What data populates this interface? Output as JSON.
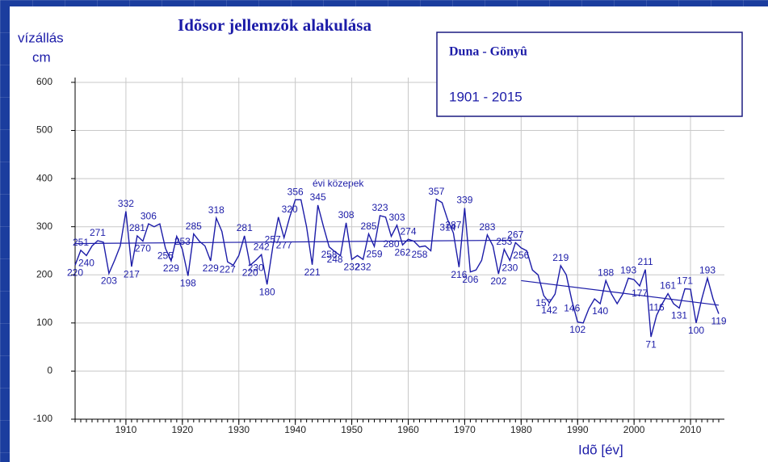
{
  "chart_data": {
    "type": "line",
    "title": "Idõsor jellemzõk alakulása",
    "ylabel": [
      "vízállás",
      "cm"
    ],
    "xlabel": "Idõ [év]",
    "legend_box": [
      "Duna - Gönyû",
      "1901 - 2015"
    ],
    "annotation": "évi közepek",
    "color": "#1c1ca8",
    "grid": true,
    "xlim": [
      1901,
      2016
    ],
    "xticks": [
      1910,
      1920,
      1930,
      1940,
      1950,
      1960,
      1970,
      1980,
      1990,
      2000,
      2010
    ],
    "ylim": [
      -100,
      610
    ],
    "yticks": [
      -100,
      0,
      100,
      200,
      300,
      400,
      500,
      600
    ],
    "x": [
      1901,
      1902,
      1903,
      1904,
      1905,
      1906,
      1907,
      1908,
      1909,
      1910,
      1911,
      1912,
      1913,
      1914,
      1915,
      1916,
      1917,
      1918,
      1919,
      1920,
      1921,
      1922,
      1923,
      1924,
      1925,
      1926,
      1927,
      1928,
      1929,
      1930,
      1931,
      1932,
      1933,
      1934,
      1935,
      1936,
      1937,
      1938,
      1939,
      1940,
      1941,
      1942,
      1943,
      1944,
      1945,
      1946,
      1947,
      1948,
      1949,
      1950,
      1951,
      1952,
      1953,
      1954,
      1955,
      1956,
      1957,
      1958,
      1959,
      1960,
      1961,
      1962,
      1963,
      1964,
      1965,
      1966,
      1967,
      1968,
      1969,
      1970,
      1971,
      1972,
      1973,
      1974,
      1975,
      1976,
      1977,
      1978,
      1979,
      1980,
      1981,
      1982,
      1983,
      1984,
      1985,
      1986,
      1987,
      1988,
      1989,
      1990,
      1991,
      1992,
      1993,
      1994,
      1995,
      1996,
      1997,
      1998,
      1999,
      2000,
      2001,
      2002,
      2003,
      2004,
      2005,
      2006,
      2007,
      2008,
      2009,
      2010,
      2011,
      2012,
      2013,
      2014,
      2015
    ],
    "values": [
      220,
      251,
      240,
      260,
      271,
      268,
      203,
      230,
      260,
      332,
      217,
      281,
      270,
      306,
      300,
      306,
      255,
      229,
      280,
      253,
      198,
      285,
      270,
      260,
      229,
      318,
      290,
      227,
      220,
      240,
      281,
      220,
      230,
      242,
      180,
      257,
      320,
      277,
      320,
      356,
      356,
      300,
      221,
      345,
      300,
      258,
      248,
      240,
      308,
      232,
      240,
      232,
      285,
      259,
      323,
      320,
      280,
      303,
      262,
      274,
      270,
      258,
      260,
      250,
      357,
      350,
      314,
      287,
      216,
      339,
      206,
      210,
      230,
      283,
      260,
      202,
      253,
      230,
      267,
      256,
      250,
      210,
      200,
      157,
      142,
      160,
      219,
      200,
      146,
      102,
      100,
      130,
      150,
      140,
      188,
      160,
      140,
      160,
      193,
      190,
      177,
      211,
      71,
      116,
      140,
      161,
      140,
      131,
      171,
      170,
      100,
      150,
      193,
      150,
      119
    ],
    "value_labels": [
      "220",
      "251",
      "240",
      null,
      "271",
      null,
      "203",
      null,
      null,
      "332",
      "217",
      "281",
      "270",
      "306",
      null,
      null,
      "255",
      "229",
      null,
      "253",
      "198",
      "285",
      null,
      null,
      "229",
      "318",
      null,
      "227",
      null,
      null,
      "281",
      "220",
      "230",
      "242",
      "180",
      "257",
      null,
      "277",
      "320",
      "356",
      null,
      null,
      "221",
      "345",
      null,
      "258",
      "248",
      null,
      "308",
      "232",
      null,
      "232",
      "285",
      "259",
      "323",
      null,
      "280",
      "303",
      "262",
      "274",
      null,
      "258",
      null,
      null,
      "357",
      null,
      "314",
      "287",
      "216",
      "339",
      "206",
      null,
      null,
      "283",
      null,
      "202",
      "253",
      "230",
      "267",
      "256",
      null,
      null,
      null,
      "157",
      "142",
      null,
      "219",
      null,
      "146",
      "102",
      null,
      null,
      null,
      "140",
      "188",
      null,
      null,
      null,
      "193",
      null,
      "177",
      "211",
      "71",
      "116",
      null,
      "161",
      null,
      "131",
      "171",
      null,
      "100",
      null,
      "193",
      null,
      "119"
    ],
    "trendlines": [
      {
        "x": [
          1901,
          1980
        ],
        "values": [
          265,
          272
        ]
      },
      {
        "x": [
          1980,
          2015
        ],
        "values": [
          188,
          137
        ]
      }
    ]
  }
}
